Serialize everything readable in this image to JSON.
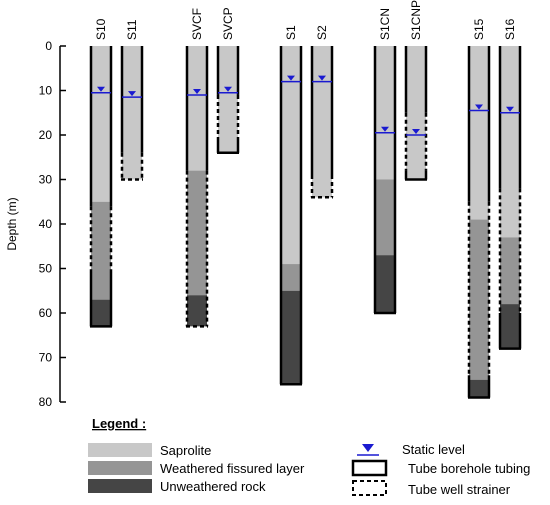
{
  "axis": {
    "label": "Depth (m)",
    "min": 0,
    "max": 80,
    "ticks": [
      0,
      10,
      20,
      30,
      40,
      50,
      60,
      70,
      80
    ]
  },
  "colors": {
    "saprolite": "#c8c8c8",
    "weathered": "#959595",
    "unweathered": "#454545",
    "static_level": "#1a1ad0",
    "outline": "#000000"
  },
  "wells": [
    {
      "name": "S10",
      "static_level": 10.5,
      "casing": [
        [
          0,
          36
        ],
        [
          51,
          63
        ]
      ],
      "strainer": [
        [
          36,
          51
        ]
      ],
      "layers": [
        {
          "type": "saprolite",
          "top": 0,
          "bottom": 35
        },
        {
          "type": "weathered",
          "top": 35,
          "bottom": 57
        },
        {
          "type": "unweathered",
          "top": 57,
          "bottom": 63
        }
      ]
    },
    {
      "name": "S11",
      "static_level": 11.5,
      "casing": [
        [
          0,
          24
        ]
      ],
      "strainer": [
        [
          24,
          30
        ]
      ],
      "layers": [
        {
          "type": "saprolite",
          "top": 0,
          "bottom": 30
        }
      ]
    },
    {
      "name": "SVCF",
      "static_level": 11,
      "casing": [
        [
          0,
          28
        ]
      ],
      "strainer": [
        [
          28,
          63
        ]
      ],
      "layers": [
        {
          "type": "saprolite",
          "top": 0,
          "bottom": 28
        },
        {
          "type": "weathered",
          "top": 28,
          "bottom": 56
        },
        {
          "type": "unweathered",
          "top": 56,
          "bottom": 63
        }
      ]
    },
    {
      "name": "SVCP",
      "static_level": 10.5,
      "casing": [
        [
          0,
          11
        ],
        [
          21,
          24
        ]
      ],
      "strainer": [
        [
          11,
          21
        ]
      ],
      "layers": [
        {
          "type": "saprolite",
          "top": 0,
          "bottom": 24
        }
      ]
    },
    {
      "name": "S1",
      "static_level": 8,
      "casing": [
        [
          0,
          76
        ]
      ],
      "strainer": [],
      "layers": [
        {
          "type": "saprolite",
          "top": 0,
          "bottom": 49
        },
        {
          "type": "weathered",
          "top": 49,
          "bottom": 55
        },
        {
          "type": "unweathered",
          "top": 55,
          "bottom": 76
        }
      ]
    },
    {
      "name": "S2",
      "static_level": 8,
      "casing": [
        [
          0,
          29
        ]
      ],
      "strainer": [
        [
          29,
          34
        ]
      ],
      "layers": [
        {
          "type": "saprolite",
          "top": 0,
          "bottom": 34
        }
      ]
    },
    {
      "name": "S1CN",
      "static_level": 19.5,
      "casing": [
        [
          0,
          60
        ]
      ],
      "strainer": [],
      "layers": [
        {
          "type": "saprolite",
          "top": 0,
          "bottom": 30
        },
        {
          "type": "weathered",
          "top": 30,
          "bottom": 47
        },
        {
          "type": "unweathered",
          "top": 47,
          "bottom": 60
        }
      ]
    },
    {
      "name": "S1CNP",
      "static_level": 20,
      "casing": [
        [
          0,
          15
        ],
        [
          28,
          30
        ]
      ],
      "strainer": [
        [
          15,
          28
        ]
      ],
      "layers": [
        {
          "type": "saprolite",
          "top": 0,
          "bottom": 30
        }
      ]
    },
    {
      "name": "S15",
      "static_level": 14.5,
      "casing": [
        [
          0,
          35
        ],
        [
          74,
          79
        ]
      ],
      "strainer": [
        [
          35,
          74
        ]
      ],
      "layers": [
        {
          "type": "saprolite",
          "top": 0,
          "bottom": 39
        },
        {
          "type": "weathered",
          "top": 39,
          "bottom": 75
        },
        {
          "type": "unweathered",
          "top": 75,
          "bottom": 79
        }
      ]
    },
    {
      "name": "S16",
      "static_level": 15,
      "casing": [
        [
          0,
          32
        ],
        [
          60,
          68
        ]
      ],
      "strainer": [
        [
          32,
          60
        ]
      ],
      "layers": [
        {
          "type": "saprolite",
          "top": 0,
          "bottom": 43
        },
        {
          "type": "weathered",
          "top": 43,
          "bottom": 58
        },
        {
          "type": "unweathered",
          "top": 58,
          "bottom": 68
        }
      ]
    }
  ],
  "legend": {
    "title": "Legend :",
    "saprolite": "Saprolite",
    "weathered": "Weathered fissured layer",
    "unweathered": "Unweathered rock",
    "static_level": "Static level",
    "tubing": "Tube borehole tubing",
    "strainer": "Tube well strainer"
  }
}
